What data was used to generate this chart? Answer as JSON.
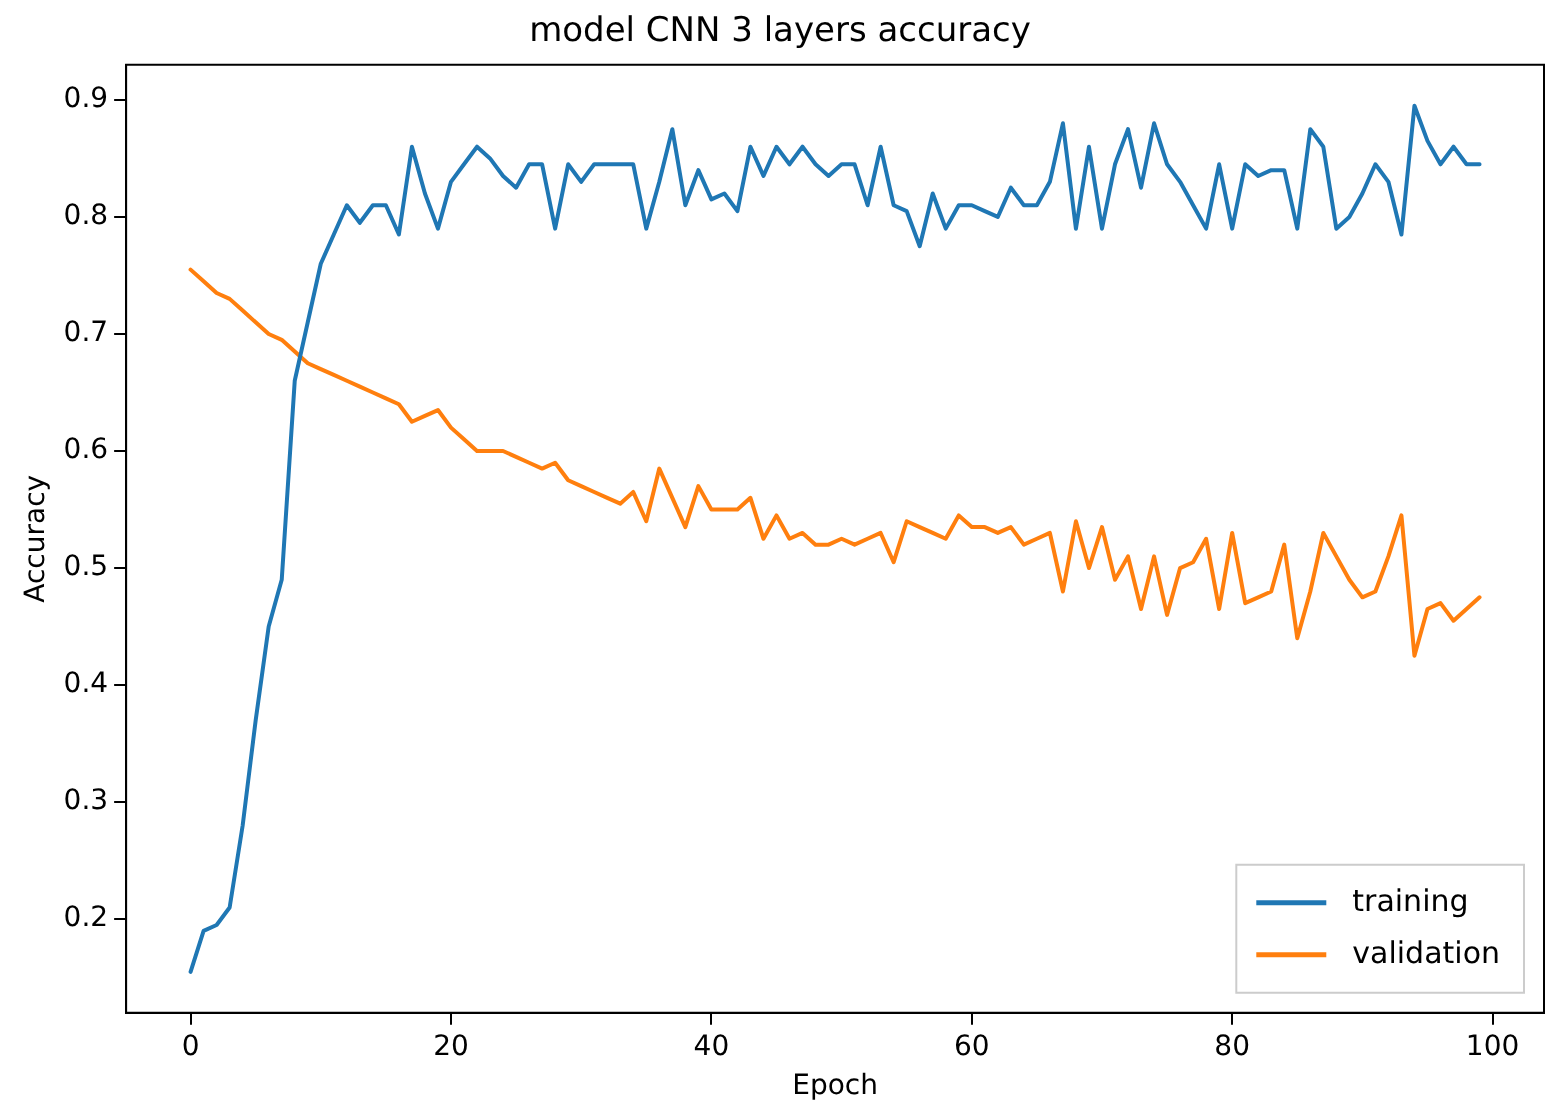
{
  "chart_data": {
    "type": "line",
    "title": "model CNN 3 layers accuracy",
    "xlabel": "Epoch",
    "ylabel": "Accuracy",
    "x": [
      0,
      1,
      2,
      3,
      4,
      5,
      6,
      7,
      8,
      9,
      10,
      11,
      12,
      13,
      14,
      15,
      16,
      17,
      18,
      19,
      20,
      21,
      22,
      23,
      24,
      25,
      26,
      27,
      28,
      29,
      30,
      31,
      32,
      33,
      34,
      35,
      36,
      37,
      38,
      39,
      40,
      41,
      42,
      43,
      44,
      45,
      46,
      47,
      48,
      49,
      50,
      51,
      52,
      53,
      54,
      55,
      56,
      57,
      58,
      59,
      60,
      61,
      62,
      63,
      64,
      65,
      66,
      67,
      68,
      69,
      70,
      71,
      72,
      73,
      74,
      75,
      76,
      77,
      78,
      79,
      80,
      81,
      82,
      83,
      84,
      85,
      86,
      87,
      88,
      89,
      90,
      91,
      92,
      93,
      94,
      95,
      96,
      97,
      98,
      99
    ],
    "series": [
      {
        "name": "training",
        "color": "#1f77b4",
        "values": [
          0.155,
          0.19,
          0.195,
          0.21,
          0.28,
          0.37,
          0.45,
          0.49,
          0.66,
          0.71,
          0.76,
          0.785,
          0.81,
          0.795,
          0.81,
          0.81,
          0.785,
          0.86,
          0.82,
          0.79,
          0.83,
          0.845,
          0.86,
          0.85,
          0.835,
          0.825,
          0.845,
          0.845,
          0.79,
          0.845,
          0.83,
          0.845,
          0.845,
          0.845,
          0.845,
          0.79,
          0.83,
          0.875,
          0.81,
          0.84,
          0.815,
          0.82,
          0.805,
          0.86,
          0.835,
          0.86,
          0.845,
          0.86,
          0.845,
          0.835,
          0.845,
          0.845,
          0.81,
          0.86,
          0.81,
          0.805,
          0.775,
          0.82,
          0.79,
          0.81,
          0.81,
          0.805,
          0.8,
          0.825,
          0.81,
          0.81,
          0.83,
          0.88,
          0.79,
          0.86,
          0.79,
          0.845,
          0.875,
          0.825,
          0.88,
          0.845,
          0.83,
          0.81,
          0.79,
          0.845,
          0.79,
          0.845,
          0.835,
          0.84,
          0.84,
          0.79,
          0.875,
          0.86,
          0.79,
          0.8,
          0.82,
          0.845,
          0.83,
          0.785,
          0.895,
          0.865,
          0.845,
          0.86,
          0.845,
          0.845
        ]
      },
      {
        "name": "validation",
        "color": "#ff7f0e",
        "values": [
          0.755,
          0.745,
          0.735,
          0.73,
          0.72,
          0.71,
          0.7,
          0.695,
          0.685,
          0.675,
          0.67,
          0.665,
          0.66,
          0.655,
          0.65,
          0.645,
          0.64,
          0.625,
          0.63,
          0.635,
          0.62,
          0.61,
          0.6,
          0.6,
          0.6,
          0.595,
          0.59,
          0.585,
          0.59,
          0.575,
          0.57,
          0.565,
          0.56,
          0.555,
          0.565,
          0.54,
          0.585,
          0.56,
          0.535,
          0.57,
          0.55,
          0.55,
          0.55,
          0.56,
          0.525,
          0.545,
          0.525,
          0.53,
          0.52,
          0.52,
          0.525,
          0.52,
          0.525,
          0.53,
          0.505,
          0.54,
          0.535,
          0.53,
          0.525,
          0.545,
          0.535,
          0.535,
          0.53,
          0.535,
          0.52,
          0.525,
          0.53,
          0.48,
          0.54,
          0.5,
          0.535,
          0.49,
          0.51,
          0.465,
          0.51,
          0.46,
          0.5,
          0.505,
          0.525,
          0.465,
          0.53,
          0.47,
          0.475,
          0.48,
          0.52,
          0.44,
          0.48,
          0.53,
          0.51,
          0.49,
          0.475,
          0.48,
          0.51,
          0.545,
          0.425,
          0.465,
          0.47,
          0.455,
          0.465,
          0.475
        ]
      }
    ],
    "xlim": [
      -4.95,
      103.95
    ],
    "xticks": [
      0,
      20,
      40,
      60,
      80,
      100
    ],
    "ylim": [
      0.12,
      0.93
    ],
    "yticks": [
      0.2,
      0.3,
      0.4,
      0.5,
      0.6,
      0.7,
      0.8,
      0.9
    ],
    "legend": "bottom right",
    "grid": false,
    "marker": "none",
    "line_style": "solid"
  }
}
